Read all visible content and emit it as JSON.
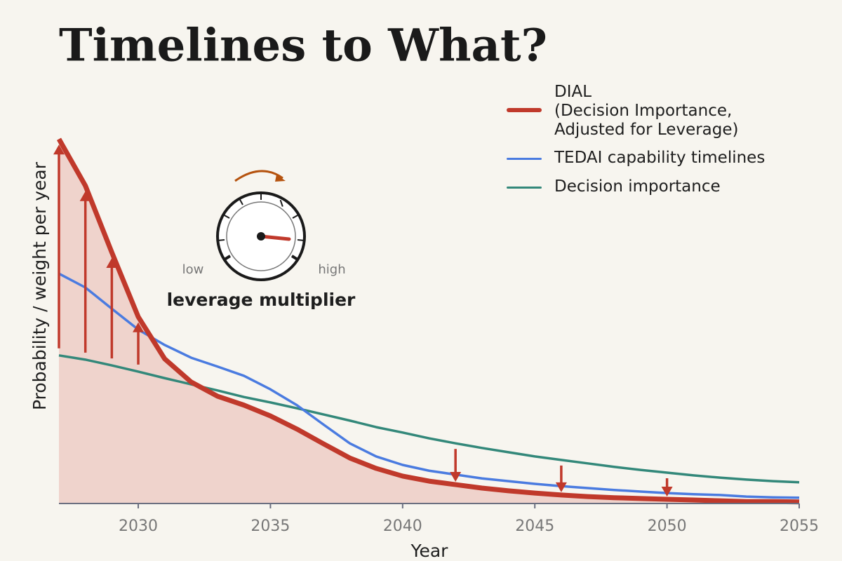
{
  "chart_data": {
    "type": "line",
    "title": "Timelines to What?",
    "x_label": "Year",
    "y_label": "Probability / weight per year",
    "x": [
      2027,
      2028,
      2029,
      2030,
      2031,
      2032,
      2033,
      2034,
      2035,
      2036,
      2037,
      2038,
      2039,
      2040,
      2041,
      2042,
      2043,
      2044,
      2045,
      2046,
      2047,
      2048,
      2049,
      2050,
      2051,
      2052,
      2053,
      2054,
      2055
    ],
    "series": [
      {
        "name": "DIAL\n(Decision Importance,\nAdjusted for Leverage)",
        "color": "#c0392b",
        "width": 7,
        "fill": "#efd3cc",
        "values": [
          9.45,
          8.24,
          6.51,
          4.84,
          3.75,
          3.15,
          2.78,
          2.55,
          2.27,
          1.93,
          1.55,
          1.18,
          0.91,
          0.71,
          0.58,
          0.49,
          0.4,
          0.33,
          0.27,
          0.22,
          0.18,
          0.15,
          0.13,
          0.11,
          0.09,
          0.07,
          0.05,
          0.05,
          0.04
        ]
      },
      {
        "name": "TEDAI capability timelines",
        "color": "#4a7be0",
        "width": 3.5,
        "values": [
          5.96,
          5.6,
          5.05,
          4.51,
          4.11,
          3.78,
          3.55,
          3.31,
          2.96,
          2.55,
          2.05,
          1.56,
          1.22,
          1.0,
          0.85,
          0.75,
          0.65,
          0.58,
          0.51,
          0.45,
          0.4,
          0.35,
          0.31,
          0.27,
          0.24,
          0.22,
          0.18,
          0.16,
          0.15
        ]
      },
      {
        "name": "Decision importance",
        "color": "#33887a",
        "width": 3.5,
        "values": [
          3.84,
          3.73,
          3.58,
          3.42,
          3.25,
          3.09,
          2.93,
          2.76,
          2.62,
          2.47,
          2.31,
          2.15,
          1.98,
          1.84,
          1.69,
          1.56,
          1.44,
          1.33,
          1.22,
          1.13,
          1.04,
          0.95,
          0.87,
          0.8,
          0.73,
          0.67,
          0.62,
          0.58,
          0.55
        ]
      }
    ],
    "leverage_arrows": [
      2027,
      2028,
      2029,
      2030,
      2042,
      2046,
      2050
    ],
    "xlim": [
      2027,
      2055
    ],
    "xticks": [
      2030,
      2035,
      2040,
      2045,
      2050,
      2055
    ],
    "ylim": [
      0,
      10
    ],
    "legend": "upper right",
    "gauge": {
      "low": "low",
      "high": "high",
      "label": "leverage multiplier"
    }
  }
}
